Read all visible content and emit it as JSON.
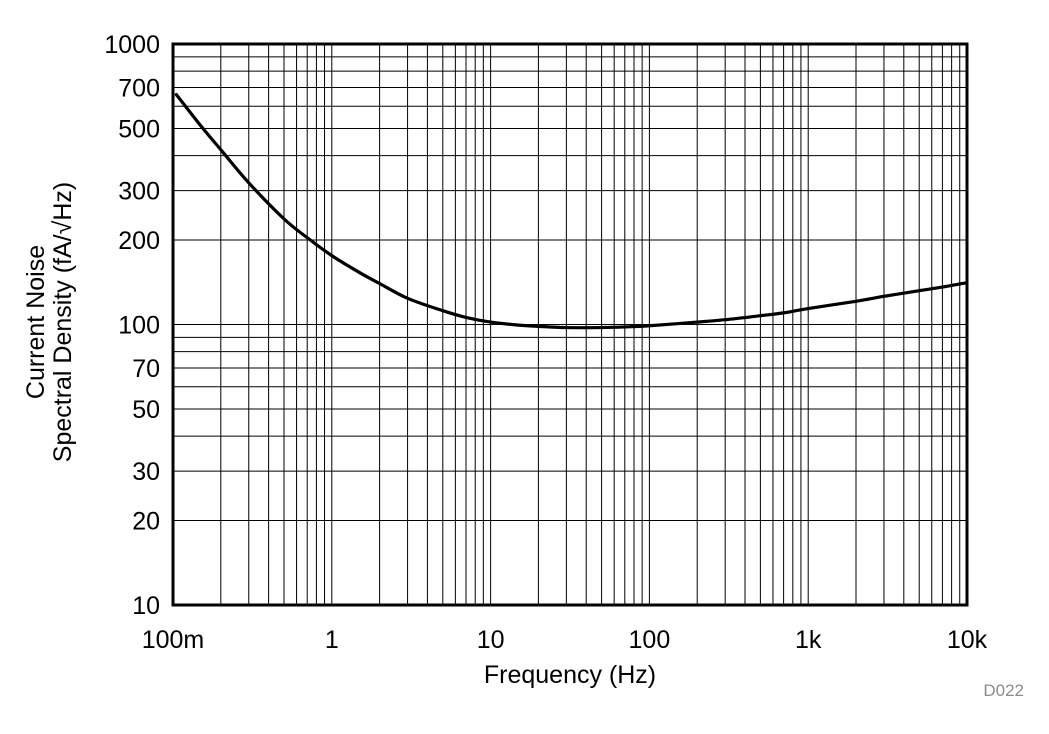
{
  "chart_data": {
    "type": "line",
    "title": "",
    "xlabel": "Frequency (Hz)",
    "ylabel_lines": [
      "Current Noise",
      "Spectral Density (fA/√Hz)"
    ],
    "x_scale": "log",
    "y_scale": "log",
    "xlim": [
      0.1,
      10000
    ],
    "ylim": [
      10,
      1000
    ],
    "grid": true,
    "x_ticks": [
      {
        "value": 0.1,
        "label": "100m"
      },
      {
        "value": 1,
        "label": "1"
      },
      {
        "value": 10,
        "label": "10"
      },
      {
        "value": 100,
        "label": "100"
      },
      {
        "value": 1000,
        "label": "1k"
      },
      {
        "value": 10000,
        "label": "10k"
      }
    ],
    "y_ticks": [
      {
        "value": 1000,
        "label": "1000"
      },
      {
        "value": 700,
        "label": "700"
      },
      {
        "value": 500,
        "label": "500"
      },
      {
        "value": 300,
        "label": "300"
      },
      {
        "value": 200,
        "label": "200"
      },
      {
        "value": 100,
        "label": "100"
      },
      {
        "value": 70,
        "label": "70"
      },
      {
        "value": 50,
        "label": "50"
      },
      {
        "value": 30,
        "label": "30"
      },
      {
        "value": 20,
        "label": "20"
      },
      {
        "value": 10,
        "label": "10"
      }
    ],
    "series": [
      {
        "color": "#000000",
        "x": [
          0.105,
          0.15,
          0.2,
          0.3,
          0.5,
          0.7,
          1,
          1.5,
          2,
          3,
          5,
          7,
          10,
          15,
          20,
          30,
          50,
          70,
          100,
          200,
          300,
          500,
          700,
          1000,
          2000,
          3000,
          5000,
          7000,
          10000
        ],
        "y": [
          660,
          510,
          420,
          320,
          238,
          204,
          176,
          153,
          140,
          124,
          112,
          106,
          102,
          99.5,
          98.5,
          97.5,
          97.5,
          98,
          99,
          102,
          104,
          107.5,
          110,
          114,
          121,
          126,
          132,
          136,
          141
        ]
      }
    ]
  },
  "figure_id": "D022"
}
